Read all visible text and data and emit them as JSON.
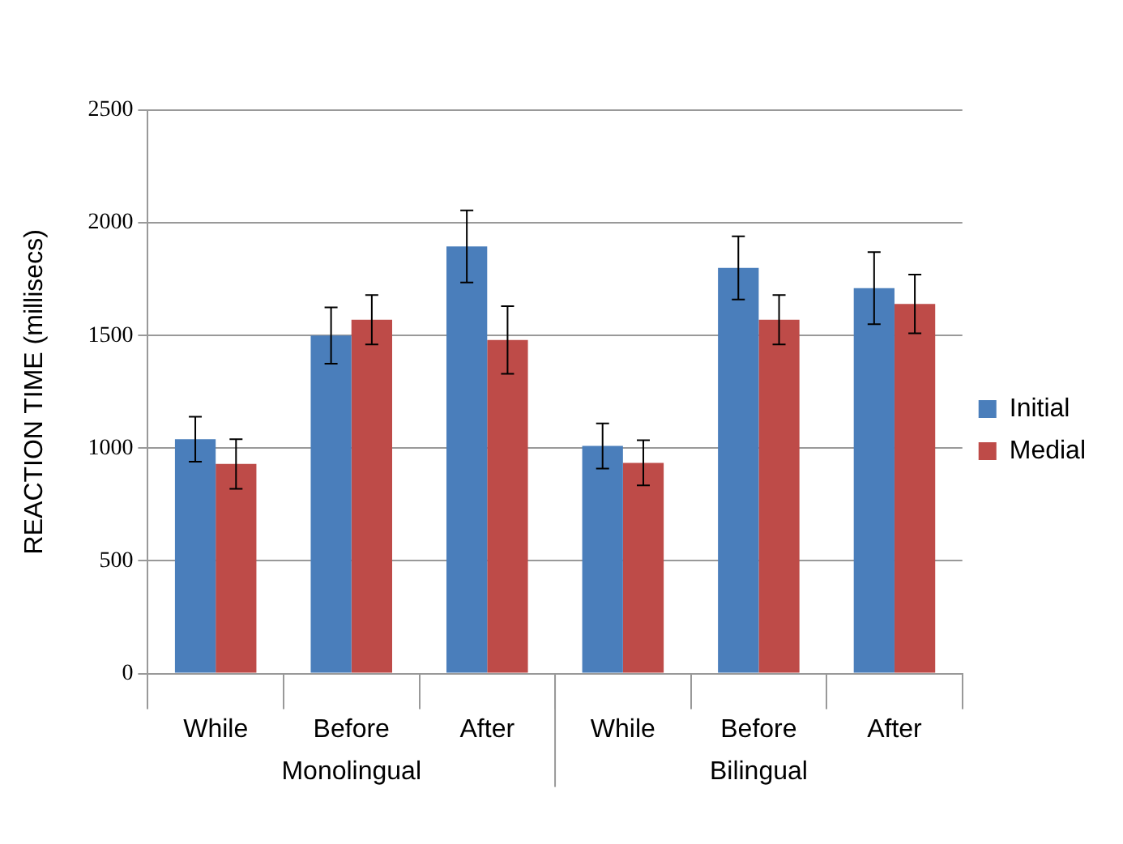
{
  "chart_data": {
    "type": "bar",
    "ylabel": "REACTION TIME (millisecs)",
    "categories": [
      "While",
      "Before",
      "After",
      "While",
      "Before",
      "After"
    ],
    "annotations": [
      "Monolingual",
      "Bilingual"
    ],
    "series": [
      {
        "name": "Initial",
        "color": "#4a7ebb",
        "values": [
          1040,
          1500,
          1895,
          1010,
          1800,
          1710
        ],
        "errors": [
          100,
          125,
          160,
          100,
          140,
          160
        ]
      },
      {
        "name": "Medial",
        "color": "#be4b48",
        "values": [
          930,
          1570,
          1480,
          935,
          1570,
          1640
        ],
        "errors": [
          110,
          110,
          150,
          100,
          110,
          130
        ]
      }
    ],
    "ylim": [
      0,
      2500
    ],
    "yticks": [
      0,
      500,
      1000,
      1500,
      2000,
      2500
    ],
    "grid": "y",
    "legend": "right"
  }
}
